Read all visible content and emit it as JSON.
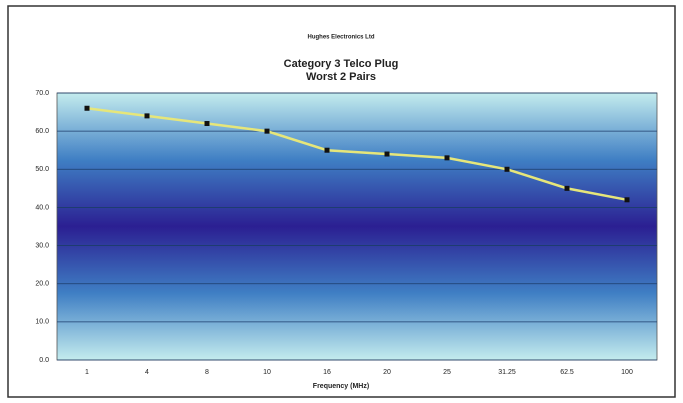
{
  "chart_data": {
    "type": "line",
    "company": "Hughes Electronics Ltd",
    "title": "Category 3 Telco Plug",
    "subtitle": "Worst 2 Pairs",
    "x_label": "Frequency (MHz)",
    "categories": [
      "1",
      "4",
      "8",
      "10",
      "16",
      "20",
      "25",
      "31.25",
      "62.5",
      "100"
    ],
    "values": [
      66,
      64,
      62,
      60,
      55,
      54,
      53,
      50,
      45,
      42
    ],
    "line_color": "#e6e67a",
    "marker_color": "#111111",
    "ylim": [
      0,
      70
    ],
    "yticks": [
      {
        "value": 0,
        "label": "0.0"
      },
      {
        "value": 10,
        "label": "10.0"
      },
      {
        "value": 20,
        "label": "20.0"
      },
      {
        "value": 30,
        "label": "30.0"
      },
      {
        "value": 40,
        "label": "40.0"
      },
      {
        "value": 50,
        "label": "50.0"
      },
      {
        "value": 60,
        "label": "60.0"
      },
      {
        "value": 70,
        "label": "70.0"
      }
    ],
    "grid": true
  }
}
